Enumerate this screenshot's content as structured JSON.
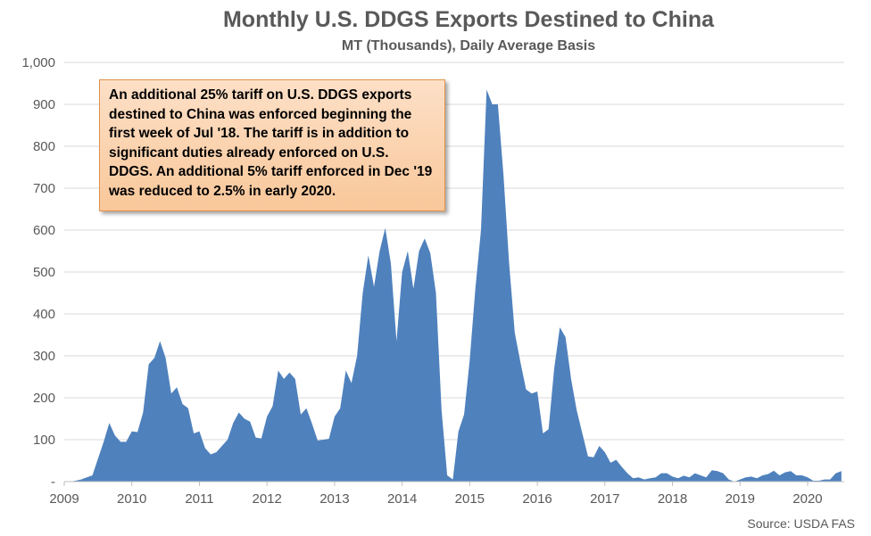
{
  "chart_data": {
    "type": "area",
    "title": "Monthly U.S. DDGS Exports Destined to China",
    "subtitle": "MT (Thousands), Daily Average Basis",
    "xlabel": "",
    "ylabel": "",
    "ylim": [
      0,
      1000
    ],
    "y_ticks": [
      "-",
      "100",
      "200",
      "300",
      "400",
      "500",
      "600",
      "700",
      "800",
      "900",
      "1,000"
    ],
    "x_ticks": [
      "2009",
      "2010",
      "2011",
      "2012",
      "2013",
      "2014",
      "2015",
      "2016",
      "2017",
      "2018",
      "2019",
      "2020"
    ],
    "grid": true,
    "series_color": "#4f81bd",
    "annotation": "An additional 25% tariff on U.S. DDGS exports destined to China was enforced beginning the first week of Jul '18. The tariff is in addition to significant duties already enforced on U.S. DDGS. An additional 5% tariff enforced in Dec '19 was reduced to 2.5% in early 2020.",
    "source": "Source: USDA FAS",
    "series": [
      {
        "x": [
          "2009-01",
          "2009-02",
          "2009-03",
          "2009-04",
          "2009-05",
          "2009-06",
          "2009-07",
          "2009-08",
          "2009-09",
          "2009-10",
          "2009-11",
          "2009-12",
          "2010-01",
          "2010-02",
          "2010-03",
          "2010-04",
          "2010-05",
          "2010-06",
          "2010-07",
          "2010-08",
          "2010-09",
          "2010-10",
          "2010-11",
          "2010-12",
          "2011-01",
          "2011-02",
          "2011-03",
          "2011-04",
          "2011-05",
          "2011-06",
          "2011-07",
          "2011-08",
          "2011-09",
          "2011-10",
          "2011-11",
          "2011-12",
          "2012-01",
          "2012-02",
          "2012-03",
          "2012-04",
          "2012-05",
          "2012-06",
          "2012-07",
          "2012-08",
          "2012-09",
          "2012-10",
          "2012-11",
          "2012-12",
          "2013-01",
          "2013-02",
          "2013-03",
          "2013-04",
          "2013-05",
          "2013-06",
          "2013-07",
          "2013-08",
          "2013-09",
          "2013-10",
          "2013-11",
          "2013-12",
          "2014-01",
          "2014-02",
          "2014-03",
          "2014-04",
          "2014-05",
          "2014-06",
          "2014-07",
          "2014-08",
          "2014-09",
          "2014-10",
          "2014-11",
          "2014-12",
          "2015-01",
          "2015-02",
          "2015-03",
          "2015-04",
          "2015-05",
          "2015-06",
          "2015-07",
          "2015-08",
          "2015-09",
          "2015-10",
          "2015-11",
          "2015-12",
          "2016-01",
          "2016-02",
          "2016-03",
          "2016-04",
          "2016-05",
          "2016-06",
          "2016-07",
          "2016-08",
          "2016-09",
          "2016-10",
          "2016-11",
          "2016-12",
          "2017-01",
          "2017-02",
          "2017-03",
          "2017-04",
          "2017-05",
          "2017-06",
          "2017-07",
          "2017-08",
          "2017-09",
          "2017-10",
          "2017-11",
          "2017-12",
          "2018-01",
          "2018-02",
          "2018-03",
          "2018-04",
          "2018-05",
          "2018-06",
          "2018-07",
          "2018-08",
          "2018-09",
          "2018-10",
          "2018-11",
          "2018-12",
          "2019-01",
          "2019-02",
          "2019-03",
          "2019-04",
          "2019-05",
          "2019-06",
          "2019-07",
          "2019-08",
          "2019-09",
          "2019-10",
          "2019-11",
          "2019-12",
          "2020-01",
          "2020-02",
          "2020-03",
          "2020-04",
          "2020-05",
          "2020-06",
          "2020-07"
        ],
        "values": [
          0,
          0,
          2,
          5,
          10,
          15,
          55,
          95,
          140,
          110,
          95,
          95,
          120,
          118,
          165,
          280,
          295,
          335,
          295,
          210,
          225,
          185,
          175,
          115,
          120,
          80,
          65,
          70,
          85,
          100,
          140,
          165,
          150,
          143,
          105,
          103,
          155,
          180,
          265,
          245,
          260,
          245,
          160,
          175,
          138,
          98,
          100,
          102,
          155,
          175,
          265,
          235,
          300,
          450,
          540,
          465,
          550,
          605,
          520,
          335,
          500,
          550,
          460,
          550,
          580,
          545,
          450,
          170,
          15,
          5,
          120,
          160,
          290,
          460,
          600,
          935,
          900,
          900,
          730,
          520,
          355,
          285,
          220,
          210,
          215,
          115,
          125,
          270,
          368,
          345,
          245,
          170,
          115,
          60,
          58,
          85,
          70,
          45,
          52,
          35,
          20,
          8,
          10,
          5,
          8,
          10,
          20,
          20,
          12,
          8,
          14,
          10,
          20,
          15,
          10,
          27,
          25,
          20,
          5,
          0,
          5,
          10,
          12,
          8,
          15,
          18,
          26,
          15,
          22,
          25,
          15,
          15,
          10,
          2,
          2,
          5,
          5,
          20,
          25
        ]
      }
    ]
  }
}
